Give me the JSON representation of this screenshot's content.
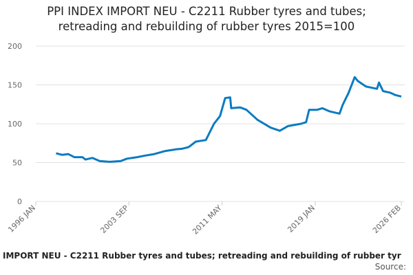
{
  "chart_data": {
    "type": "line",
    "title": [
      "PPI INDEX IMPORT NEU - C2211 Rubber tyres and tubes;",
      "retreading and rebuilding of rubber tyres 2015=100"
    ],
    "footer": "IMPORT NEU - C2211 Rubber tyres and tubes; retreading and rebuilding of rubber tyr",
    "source": "Source:",
    "x": [
      "1997 SEP",
      "1998 MAR",
      "1998 SEP",
      "1999 MAR",
      "1999 NOV",
      "2000 FEB",
      "2000 SEP",
      "2001 APR",
      "2002 FEB",
      "2003 JAN",
      "2003 JUL",
      "2004 MAY",
      "2005 JAN",
      "2005 OCT",
      "2006 SEP",
      "2007 JUL",
      "2008 FEB",
      "2008 AUG",
      "2009 MAR",
      "2010 JAN",
      "2010 SEP",
      "2011 MAR",
      "2011 AUG",
      "2012 JAN",
      "2012 FEB",
      "2012 NOV",
      "2013 MAY",
      "2014 APR",
      "2015 MAY",
      "2016 FEB",
      "2016 OCT",
      "2017 NOV",
      "2018 APR",
      "2018 JUL",
      "2019 MAR",
      "2019 AUG",
      "2020 MAR",
      "2021 JAN",
      "2021 APR",
      "2021 OCT",
      "2022 APR",
      "2022 JUL",
      "2023 MAR",
      "2024 FEB",
      "2024 APR",
      "2024 AUG",
      "2025 MAR",
      "2025 AUG",
      "2026 FEB"
    ],
    "series": [
      {
        "name": "PPI INDEX",
        "color": "#0a7bc1",
        "values": [
          62,
          60,
          61,
          57,
          57,
          54,
          56,
          52,
          51,
          52,
          55,
          57,
          59,
          61,
          65,
          67,
          68,
          70,
          77,
          79,
          100,
          110,
          133,
          134,
          120,
          121,
          118,
          105,
          95,
          91,
          97,
          100,
          102,
          118,
          118,
          120,
          116,
          113,
          124,
          140,
          160,
          155,
          148,
          145,
          153,
          142,
          140,
          137,
          135
        ]
      }
    ],
    "xlim": [
      "1996 JAN",
      "2026 FEB"
    ],
    "xticks": [
      "1996 JAN",
      "2003 SEP",
      "2011 MAY",
      "2019 JAN",
      "2026 FEB"
    ],
    "ylim": [
      0,
      200
    ],
    "yticks": [
      0,
      50,
      100,
      150,
      200
    ],
    "grid": true
  }
}
